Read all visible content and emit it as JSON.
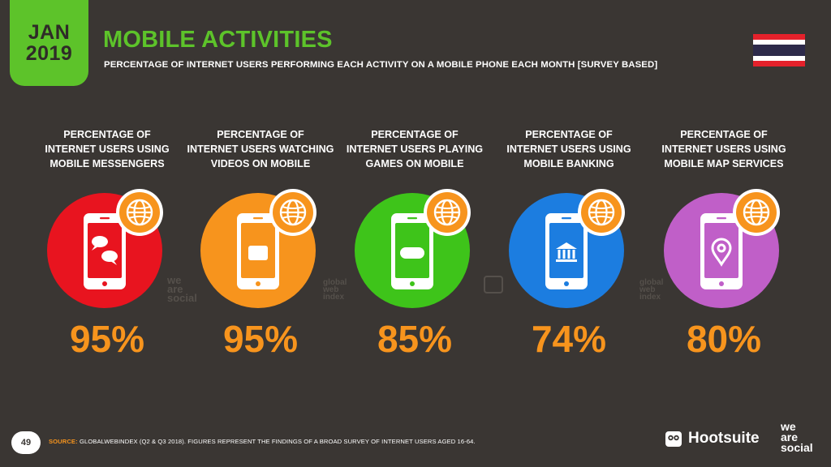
{
  "header": {
    "month": "JAN",
    "year": "2019",
    "title": "MOBILE ACTIVITIES",
    "subtitle": "PERCENTAGE OF INTERNET USERS PERFORMING EACH ACTIVITY ON A MOBILE PHONE EACH MONTH [SURVEY BASED]"
  },
  "flag": {
    "country": "Thailand",
    "colors": [
      "#e4212b",
      "#ffffff",
      "#2d2a4a",
      "#ffffff",
      "#e4212b"
    ]
  },
  "stats": [
    {
      "label_lines": [
        "PERCENTAGE OF",
        "INTERNET USERS USING",
        "MOBILE MESSENGERS"
      ],
      "value": "95%",
      "color": "#e8141f",
      "icon": "chat-bubbles-icon"
    },
    {
      "label_lines": [
        "PERCENTAGE OF",
        "INTERNET USERS WATCHING",
        "VIDEOS ON MOBILE"
      ],
      "value": "95%",
      "color": "#f7941d",
      "icon": "play-button-icon"
    },
    {
      "label_lines": [
        "PERCENTAGE OF",
        "INTERNET USERS PLAYING",
        "GAMES ON MOBILE"
      ],
      "value": "85%",
      "color": "#3ec41a",
      "icon": "gamepad-icon"
    },
    {
      "label_lines": [
        "PERCENTAGE OF",
        "INTERNET USERS USING",
        "MOBILE BANKING"
      ],
      "value": "74%",
      "color": "#1c7de0",
      "icon": "bank-icon"
    },
    {
      "label_lines": [
        "PERCENTAGE OF",
        "INTERNET USERS USING",
        "MOBILE MAP SERVICES"
      ],
      "value": "80%",
      "color": "#c05fc8",
      "icon": "map-pin-icon"
    }
  ],
  "value_color": "#f7941d",
  "globe_badge_color": "#f7941d",
  "watermarks": {
    "we_are_social": [
      "we",
      "are",
      "social"
    ],
    "global_web_index": [
      "global",
      "web",
      "index"
    ]
  },
  "footer": {
    "page_number": "49",
    "source_label": "SOURCE:",
    "source_text": "GLOBALWEBINDEX (Q2 & Q3 2018). FIGURES REPRESENT THE FINDINGS OF A BROAD SURVEY OF INTERNET USERS AGED 16-64.",
    "hootsuite": "Hootsuite",
    "we_are_social": [
      "we",
      "are",
      "social"
    ]
  }
}
